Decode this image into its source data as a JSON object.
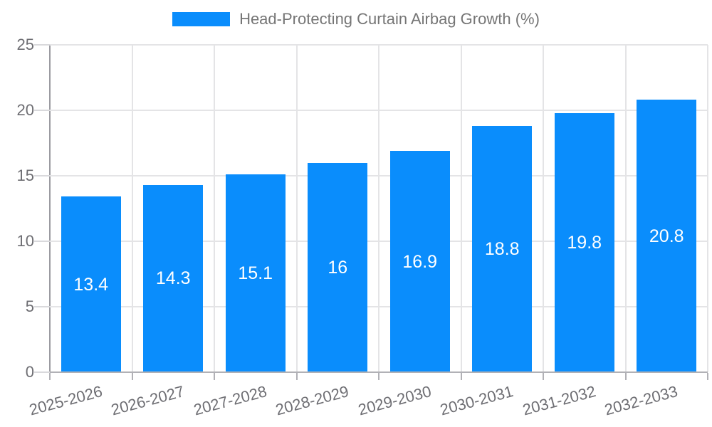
{
  "legend": {
    "label": "Head-Protecting Curtain Airbag Growth (%)",
    "swatch_color": "#0a8dfc"
  },
  "chart_data": {
    "type": "bar",
    "title": "Head-Protecting Curtain Airbag Growth (%)",
    "categories": [
      "2025-2026",
      "2026-2027",
      "2027-2028",
      "2028-2029",
      "2029-2030",
      "2030-2031",
      "2031-2032",
      "2032-2033"
    ],
    "values": [
      13.4,
      14.3,
      15.1,
      16,
      16.9,
      18.8,
      19.8,
      20.8
    ],
    "bar_labels": [
      "13.4",
      "14.3",
      "15.1",
      "16",
      "16.9",
      "18.8",
      "19.8",
      "20.8"
    ],
    "xlabel": "",
    "ylabel": "",
    "ylim": [
      0,
      25
    ],
    "yticks": [
      0,
      5,
      10,
      15,
      20,
      25
    ],
    "grid": true,
    "legend_position": "top-center",
    "bar_color": "#0a8dfc",
    "bar_label_color": "#ffffff",
    "axis_text_color": "#6e6e73",
    "gridline_color": "#e4e4e6",
    "x_label_rotation_deg": -15
  }
}
